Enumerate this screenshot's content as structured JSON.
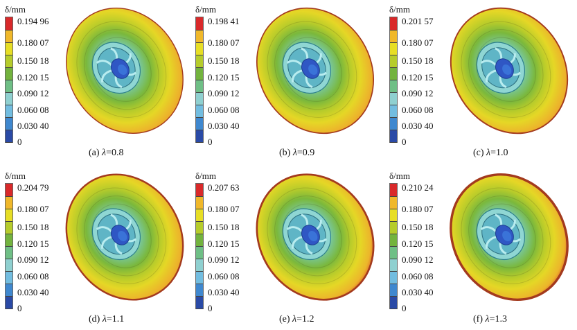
{
  "unit_label": "δ/mm",
  "legend_colors": [
    "#2a4aa6",
    "#3f88cf",
    "#72bde0",
    "#8fd0d0",
    "#6fbf86",
    "#73b33e",
    "#b6cc2b",
    "#e7de25",
    "#f0b82a",
    "#d9292a"
  ],
  "panels": [
    {
      "id": "a",
      "caption_prefix": "(a) ",
      "lambda_symbol": "λ",
      "caption_value": "=0.8",
      "ticks": [
        "0.194 96",
        "0.180 07",
        "0.150 18",
        "0.120 15",
        "0.090 12",
        "0.060 08",
        "0.030 40",
        "0"
      ],
      "outer_red": 0.1
    },
    {
      "id": "b",
      "caption_prefix": "(b) ",
      "lambda_symbol": "λ",
      "caption_value": "=0.9",
      "ticks": [
        "0.198 41",
        "0.180 07",
        "0.150 18",
        "0.120 15",
        "0.090 12",
        "0.060 08",
        "0.030 40",
        "0"
      ],
      "outer_red": 0.2
    },
    {
      "id": "c",
      "caption_prefix": "(c) ",
      "lambda_symbol": "λ",
      "caption_value": "=1.0",
      "ticks": [
        "0.201 57",
        "0.180 07",
        "0.150 18",
        "0.120 15",
        "0.090 12",
        "0.060 08",
        "0.030 40",
        "0"
      ],
      "outer_red": 0.3
    },
    {
      "id": "d",
      "caption_prefix": "(d) ",
      "lambda_symbol": "λ",
      "caption_value": "=1.1",
      "ticks": [
        "0.204 79",
        "0.180 07",
        "0.150 18",
        "0.120 15",
        "0.090 12",
        "0.060 08",
        "0.030 40",
        "0"
      ],
      "outer_red": 0.5
    },
    {
      "id": "e",
      "caption_prefix": "(e) ",
      "lambda_symbol": "λ",
      "caption_value": "=1.2",
      "ticks": [
        "0.207 63",
        "0.180 07",
        "0.150 18",
        "0.120 15",
        "0.090 12",
        "0.060 08",
        "0.030 40",
        "0"
      ],
      "outer_red": 0.6
    },
    {
      "id": "f",
      "caption_prefix": "(f) ",
      "lambda_symbol": "λ",
      "caption_value": "=1.3",
      "ticks": [
        "0.210 24",
        "0.180 07",
        "0.150 18",
        "0.120 15",
        "0.090 12",
        "0.060 08",
        "0.030 40",
        "0"
      ],
      "outer_red": 0.9
    }
  ]
}
